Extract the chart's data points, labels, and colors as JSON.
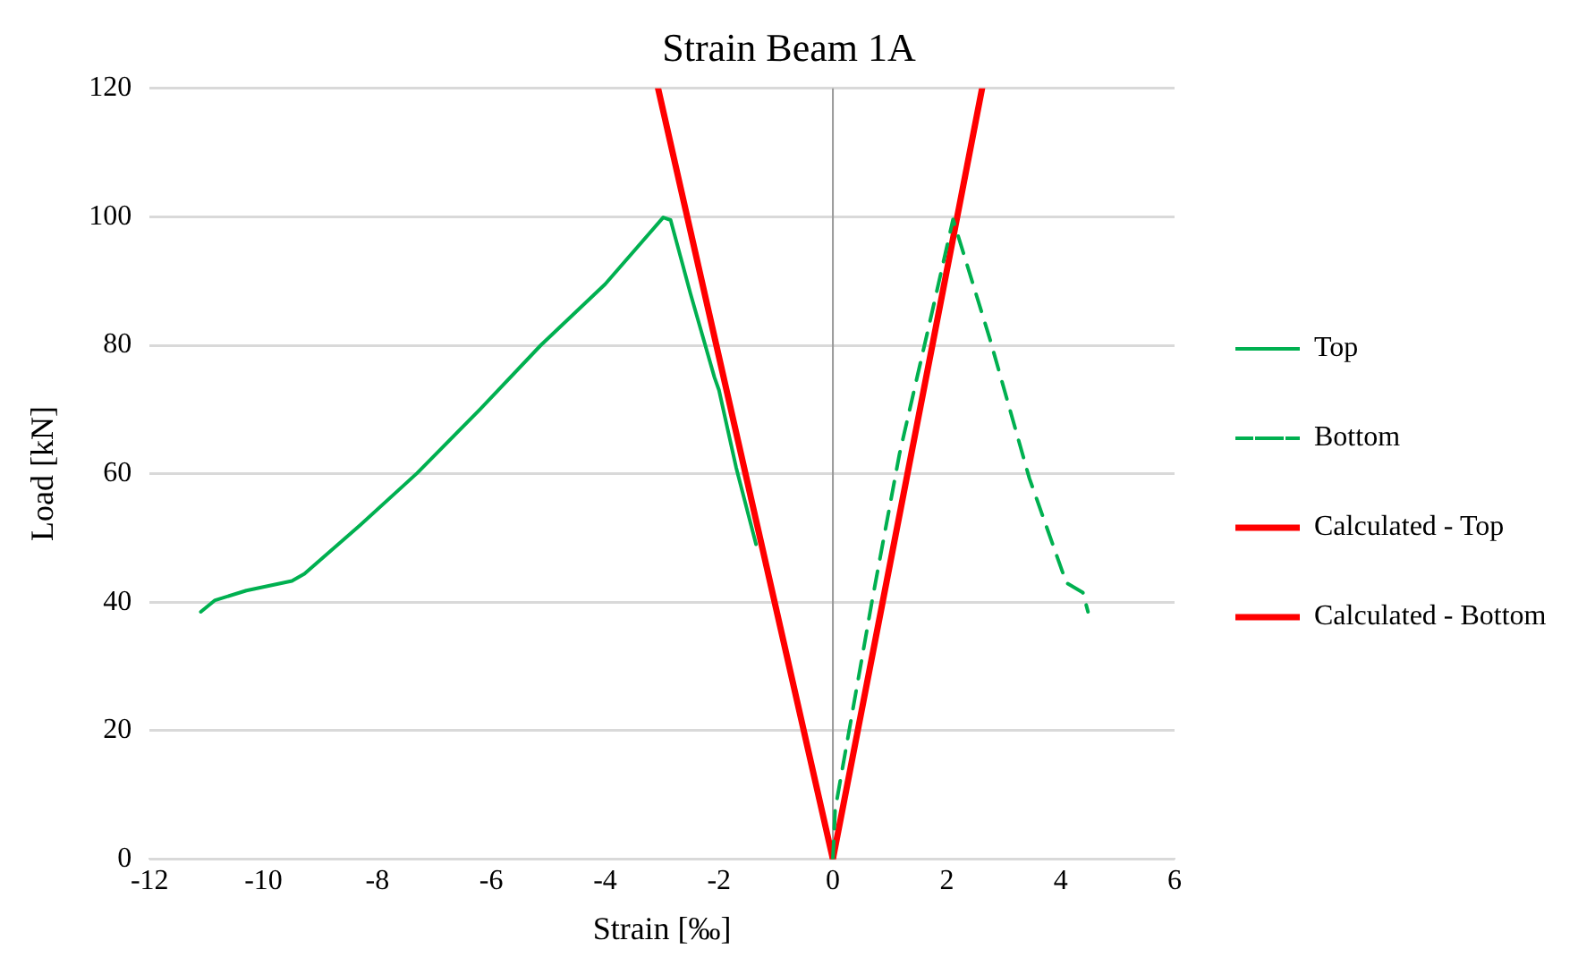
{
  "chart_data": {
    "type": "line",
    "title": "Strain Beam 1A",
    "xlabel": "Strain [‰]",
    "ylabel": "Load [kN]",
    "xlim": [
      -12,
      6
    ],
    "xticks": [
      -12,
      -10,
      -8,
      -6,
      -4,
      -2,
      0,
      2,
      4,
      6
    ],
    "ylim": [
      0,
      120
    ],
    "yticks": [
      0,
      20,
      40,
      60,
      80,
      100,
      120
    ],
    "grid": "y",
    "legend": "right",
    "marker": "none",
    "series": [
      {
        "name": "Top",
        "color": "#00b050",
        "line_style": "solid",
        "x": [
          -11.1,
          -10.85,
          -10.3,
          -9.5,
          -9.28,
          -8.3,
          -7.3,
          -6.2,
          -5.13,
          -4.0,
          -2.98,
          -2.85,
          -2.5,
          -2.08,
          -2.0,
          -1.7,
          -1.35
        ],
        "values": [
          38.5,
          40.3,
          41.8,
          43.3,
          44.4,
          52,
          60.1,
          70,
          80,
          89.5,
          99.9,
          99.5,
          88,
          75,
          73,
          61,
          49
        ]
      },
      {
        "name": "Bottom",
        "color": "#00b050",
        "line_style": "dashed",
        "x": [
          0,
          0.04,
          0.69,
          1.17,
          1.73,
          2.11,
          2.76,
          3.45,
          4.1,
          4.39,
          4.48
        ],
        "values": [
          0,
          7.7,
          40.3,
          63.1,
          84.7,
          99.6,
          80.9,
          59.3,
          43,
          41.5,
          38.5
        ]
      },
      {
        "name": "Calculated - Top",
        "color": "#ff0000",
        "line_style": "solid",
        "x": [
          0,
          -3.07
        ],
        "values": [
          0,
          120
        ]
      },
      {
        "name": "Calculated - Bottom",
        "color": "#ff0000",
        "line_style": "solid",
        "x": [
          0,
          2.62
        ],
        "values": [
          0,
          120
        ]
      }
    ]
  }
}
